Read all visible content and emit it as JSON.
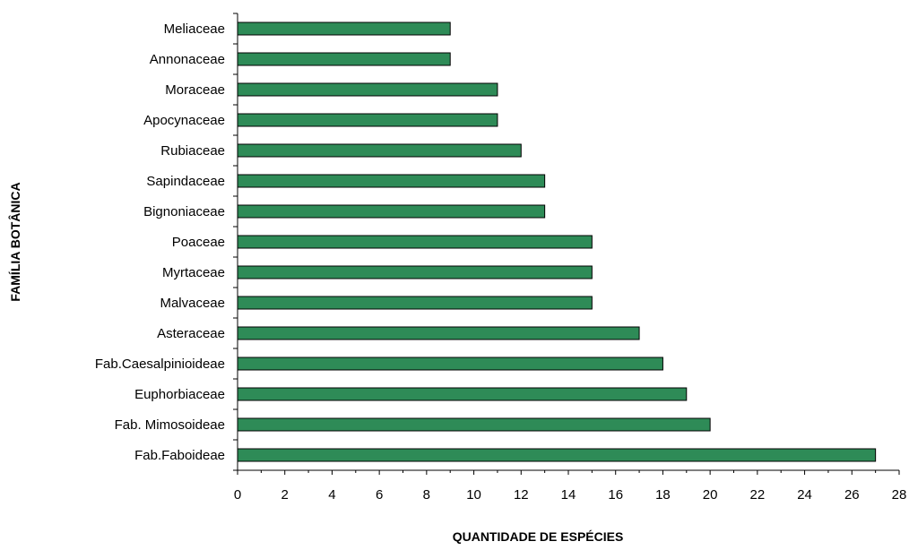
{
  "chart_data": {
    "type": "bar",
    "orientation": "horizontal",
    "categories": [
      "Meliaceae",
      "Annonaceae",
      "Moraceae",
      "Apocynaceae",
      "Rubiaceae",
      "Sapindaceae",
      "Bignoniaceae",
      "Poaceae",
      "Myrtaceae",
      "Malvaceae",
      "Asteraceae",
      "Fab.Caesalpinioideae",
      "Euphorbiaceae",
      "Fab. Mimosoideae",
      "Fab.Faboideae"
    ],
    "values": [
      9,
      9,
      11,
      11,
      12,
      13,
      13,
      15,
      15,
      15,
      17,
      18,
      19,
      20,
      27
    ],
    "xlabel": "QUANTIDADE DE ESPÉCIES",
    "ylabel": "FAMÍLIA BOTÂNICA",
    "xlim": [
      0,
      28
    ],
    "xticks": [
      0,
      2,
      4,
      6,
      8,
      10,
      12,
      14,
      16,
      18,
      20,
      22,
      24,
      26,
      28
    ],
    "grid": false,
    "bar_color": "#2e8b57"
  }
}
